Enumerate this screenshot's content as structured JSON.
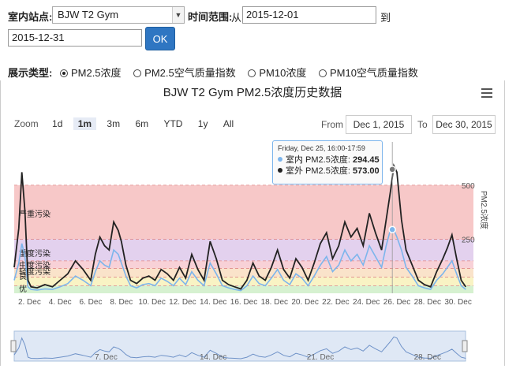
{
  "form": {
    "station_label": "室内站点:",
    "station_value": "BJW T2 Gym",
    "time_range_label": "时间范围:",
    "from_label": "从",
    "from_value": "2015-12-01",
    "to_label": "到",
    "to_value": "2015-12-31",
    "ok_label": "OK"
  },
  "display_type": {
    "label": "展示类型:",
    "options": [
      "PM2.5浓度",
      "PM2.5空气质量指数",
      "PM10浓度",
      "PM10空气质量指数"
    ],
    "selected": "PM2.5浓度"
  },
  "chart": {
    "title": "BJW T2 Gym PM2.5浓度历史数据",
    "zoom_label": "Zoom",
    "zoom_buttons": [
      "1d",
      "1m",
      "3m",
      "6m",
      "YTD",
      "1y",
      "All"
    ],
    "zoom_selected": "1m",
    "from_label": "From",
    "from_value": "Dec 1, 2015",
    "to_label": "To",
    "to_value": "Dec 30, 2015",
    "y_axis_label": "PM2.5浓度",
    "tooltip": {
      "time": "Friday, Dec 25, 16:00-17:59",
      "indoor_label": "室内 PM2.5浓度:",
      "indoor_value": "294.45",
      "outdoor_label": "室外 PM2.5浓度:",
      "outdoor_value": "573.00"
    },
    "bands": [
      "严重污染",
      "重度污染",
      "中度污染",
      "轻度污染",
      "良",
      "优"
    ],
    "navigator_labels": [
      "7. Dec",
      "14. Dec",
      "21. Dec",
      "28. Dec"
    ]
  },
  "chart_data": {
    "type": "line",
    "title": "BJW T2 Gym PM2.5浓度历史数据",
    "ylabel": "PM2.5浓度",
    "ylim": [
      0,
      700
    ],
    "y_ticks": [
      250,
      500
    ],
    "x_ticks": [
      "2. Dec",
      "4. Dec",
      "6. Dec",
      "8. Dec",
      "10. Dec",
      "12. Dec",
      "14. Dec",
      "16. Dec",
      "18. Dec",
      "20. Dec",
      "22. Dec",
      "24. Dec",
      "26. Dec",
      "28. Dec",
      "30. Dec"
    ],
    "series": [
      {
        "name": "室外 PM2.5浓度",
        "color": "#222222",
        "x": [
          1.0,
          1.3,
          1.5,
          1.7,
          1.9,
          2.1,
          2.5,
          3.0,
          3.5,
          4.0,
          4.5,
          5.0,
          5.5,
          6.0,
          6.3,
          6.6,
          6.9,
          7.2,
          7.5,
          7.8,
          8.0,
          8.3,
          8.6,
          9.0,
          9.4,
          9.8,
          10.2,
          10.6,
          11.0,
          11.4,
          11.8,
          12.2,
          12.6,
          13.0,
          13.4,
          13.8,
          14.2,
          14.6,
          15.0,
          15.4,
          15.8,
          16.2,
          16.6,
          17.0,
          17.4,
          17.8,
          18.2,
          18.6,
          19.0,
          19.4,
          19.8,
          20.2,
          20.6,
          21.0,
          21.4,
          21.8,
          22.2,
          22.6,
          23.0,
          23.4,
          23.8,
          24.2,
          24.6,
          25.0,
          25.3,
          25.6,
          25.8,
          26.0,
          26.3,
          26.6,
          27.0,
          27.4,
          27.8,
          28.2,
          28.6,
          29.0,
          29.3,
          29.6,
          29.9,
          30.2,
          30.5
        ],
        "values": [
          120,
          300,
          560,
          380,
          60,
          30,
          25,
          40,
          30,
          60,
          90,
          150,
          110,
          60,
          180,
          260,
          220,
          200,
          330,
          290,
          240,
          130,
          60,
          45,
          70,
          80,
          60,
          110,
          90,
          60,
          120,
          70,
          180,
          110,
          60,
          240,
          160,
          60,
          40,
          30,
          20,
          60,
          140,
          80,
          60,
          120,
          200,
          110,
          70,
          160,
          120,
          60,
          140,
          230,
          280,
          160,
          220,
          330,
          260,
          300,
          220,
          370,
          280,
          200,
          340,
          480,
          590,
          560,
          340,
          200,
          130,
          60,
          40,
          30,
          100,
          160,
          210,
          270,
          160,
          60,
          30
        ]
      },
      {
        "name": "室内 PM2.5浓度",
        "color": "#7cb5ec",
        "x": [
          1.0,
          1.3,
          1.5,
          1.7,
          1.9,
          2.1,
          2.5,
          3.0,
          3.5,
          4.0,
          4.5,
          5.0,
          5.5,
          6.0,
          6.3,
          6.6,
          6.9,
          7.2,
          7.5,
          7.8,
          8.0,
          8.3,
          8.6,
          9.0,
          9.4,
          9.8,
          10.2,
          10.6,
          11.0,
          11.4,
          11.8,
          12.2,
          12.6,
          13.0,
          13.4,
          13.8,
          14.2,
          14.6,
          15.0,
          15.4,
          15.8,
          16.2,
          16.6,
          17.0,
          17.4,
          17.8,
          18.2,
          18.6,
          19.0,
          19.4,
          19.8,
          20.2,
          20.6,
          21.0,
          21.4,
          21.8,
          22.2,
          22.6,
          23.0,
          23.4,
          23.8,
          24.2,
          24.6,
          25.0,
          25.3,
          25.6,
          25.8,
          26.0,
          26.3,
          26.6,
          27.0,
          27.4,
          27.8,
          28.2,
          28.6,
          29.0,
          29.3,
          29.6,
          29.9,
          30.2,
          30.5
        ],
        "values": [
          60,
          140,
          230,
          170,
          30,
          18,
          15,
          20,
          18,
          30,
          45,
          80,
          60,
          35,
          100,
          150,
          130,
          120,
          200,
          180,
          140,
          80,
          35,
          25,
          40,
          45,
          35,
          70,
          55,
          35,
          70,
          40,
          100,
          60,
          35,
          140,
          90,
          35,
          25,
          18,
          12,
          35,
          80,
          45,
          35,
          70,
          110,
          60,
          40,
          90,
          70,
          35,
          80,
          130,
          170,
          100,
          130,
          200,
          150,
          180,
          130,
          220,
          170,
          120,
          220,
          300,
          294,
          260,
          200,
          120,
          80,
          35,
          25,
          18,
          60,
          90,
          120,
          150,
          90,
          35,
          18
        ]
      }
    ],
    "tooltip_point": {
      "x": 25.7,
      "indoor": 294.45,
      "outdoor": 573.0
    },
    "bands": [
      {
        "name": "严重污染",
        "from": 250,
        "to": 500,
        "color": "#f4b6b6"
      },
      {
        "name": "重度污染",
        "from": 150,
        "to": 250,
        "color": "#d9c2e8"
      },
      {
        "name": "中度污染",
        "from": 115,
        "to": 150,
        "color": "#f6c1c9"
      },
      {
        "name": "轻度污染",
        "from": 75,
        "to": 115,
        "color": "#f8d9b8"
      },
      {
        "name": "良",
        "from": 35,
        "to": 75,
        "color": "#f7efb0"
      },
      {
        "name": "优",
        "from": 0,
        "to": 35,
        "color": "#c8ecc0"
      }
    ]
  }
}
